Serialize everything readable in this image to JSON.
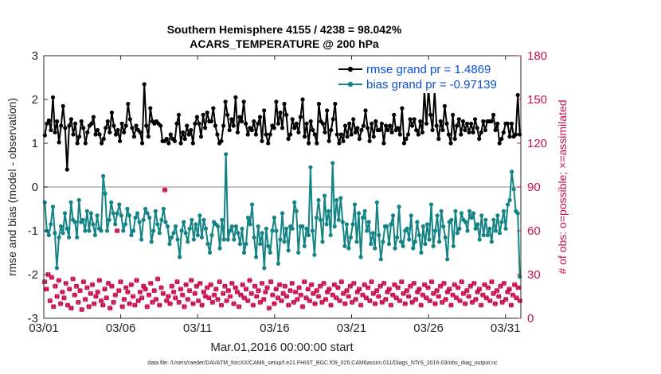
{
  "colors": {
    "rmse": "#000000",
    "bias": "#138384",
    "obs": "#c8104e",
    "zero_line": "#b0b0b0",
    "legend_text": "#0b4fd6"
  },
  "chart_data": {
    "type": "line",
    "title_line1": "Southern Hemisphere 4155 / 4238 = 98.042%",
    "title_line2": "ACARS_TEMPERATURE @ 200 hPa",
    "xlabel": "Mar.01,2016 00:00:00 start",
    "ylabel_left": "rmse and bias (model - observation)",
    "ylabel_right": "# of obs: o=possible; ×=assimilated",
    "footnote": "data file: /Users/raeder/DAI/ATM_forcXX/CAM6_setup/f.e21.FHIST_BGC.f09_025.CAM6assim.011/Diags_NTrS_2016-03/obs_diag_output.nc",
    "xlim": [
      0,
      31
    ],
    "x_ticks": [
      0,
      5,
      10,
      15,
      20,
      25,
      30
    ],
    "x_tick_labels": [
      "03/01",
      "03/06",
      "03/11",
      "03/16",
      "03/21",
      "03/26",
      "03/31"
    ],
    "ylim_left": [
      -3,
      3
    ],
    "y_ticks_left": [
      -3,
      -2,
      -1,
      0,
      1,
      2,
      3
    ],
    "y_tick_labels_left": [
      "-3",
      "-2",
      "-1",
      "0",
      "1",
      "2",
      "3"
    ],
    "ylim_right": [
      0,
      180
    ],
    "y_ticks_right": [
      0,
      30,
      60,
      90,
      120,
      150,
      180
    ],
    "y_tick_labels_right": [
      "0",
      "30",
      "60",
      "90",
      "120",
      "150",
      "180"
    ],
    "legend": [
      "rmse grand pr = 1.4869",
      "bias grand pr = -0.97139"
    ],
    "series": [
      {
        "name": "rmse",
        "axis": "left",
        "marker": "dot",
        "values": [
          1.18,
          1.45,
          1.52,
          1.3,
          2.05,
          1.25,
          1.5,
          1.02,
          1.4,
          1.85,
          1.35,
          0.4,
          1.4,
          1.55,
          1.2,
          1.45,
          1.0,
          1.15,
          1.5,
          1.35,
          1.0,
          1.25,
          1.4,
          1.45,
          1.6,
          1.2,
          1.3,
          1.2,
          1.0,
          1.1,
          1.35,
          1.5,
          1.25,
          1.7,
          1.4,
          1.2,
          1.3,
          1.05,
          1.45,
          1.25,
          1.4,
          1.9,
          1.55,
          1.35,
          1.15,
          1.4,
          1.3,
          1.25,
          1.0,
          2.35,
          1.4,
          1.15,
          1.8,
          1.5,
          1.45,
          1.5,
          1.45,
          1.4,
          1.05,
          1.05,
          1.1,
          1.0,
          1.2,
          1.1,
          1.05,
          1.45,
          1.65,
          1.0,
          1.25,
          1.1,
          1.4,
          1.2,
          1.3,
          1.0,
          1.45,
          1.6,
          1.45,
          1.15,
          1.65,
          1.35,
          1.7,
          1.5,
          1.5,
          1.8,
          1.4,
          1.2,
          1.0,
          1.05,
          1.4,
          1.95,
          1.65,
          1.3,
          1.55,
          1.4,
          2.05,
          1.25,
          1.6,
          1.5,
          1.95,
          1.45,
          1.2,
          1.35,
          1.3,
          1.5,
          1.2,
          1.45,
          1.6,
          1.05,
          1.75,
          1.2,
          1.0,
          1.2,
          1.4,
          1.35,
          1.95,
          1.45,
          1.7,
          1.35,
          1.9,
          1.65,
          1.1,
          1.2,
          1.55,
          1.35,
          1.45,
          1.25,
          1.6,
          2.0,
          1.15,
          1.45,
          1.0,
          1.5,
          1.3,
          1.2,
          1.0,
          1.9,
          1.5,
          1.45,
          1.25,
          1.75,
          1.05,
          1.3,
          1.55,
          1.9,
          1.2,
          1.0,
          1.2,
          1.05,
          1.4,
          1.15,
          1.45,
          1.2,
          1.55,
          1.25,
          1.35,
          1.1,
          1.3,
          1.4,
          1.75,
          1.35,
          1.05,
          1.45,
          1.15,
          1.5,
          1.3,
          1.3,
          1.45,
          1.0,
          1.4,
          1.3,
          1.4,
          1.25,
          1.65,
          1.3,
          1.35,
          1.2,
          1.8,
          1.0,
          1.1,
          1.2,
          1.55,
          1.4,
          1.55,
          1.3,
          1.2,
          1.5,
          1.25,
          2.2,
          1.45,
          2.25,
          1.65,
          1.3,
          2.2,
          1.4,
          1.1,
          1.5,
          1.3,
          1.85,
          1.45,
          1.2,
          1.0,
          1.65,
          1.1,
          1.4,
          1.55,
          1.2,
          1.5,
          1.3,
          1.45,
          1.25,
          1.45,
          1.25,
          1.55,
          1.35,
          1.1,
          1.25,
          1.5,
          1.3,
          1.5,
          1.5,
          1.5,
          1.65,
          1.3,
          1.45,
          1.0,
          1.1,
          1.25,
          1.45,
          1.45,
          1.15,
          1.45,
          1.15,
          1.2,
          2.1,
          1.2
        ]
      },
      {
        "name": "bias",
        "axis": "left",
        "marker": "dot",
        "values": [
          -0.35,
          -1.0,
          -1.1,
          -0.85,
          -0.45,
          -1.05,
          -1.85,
          -1.15,
          -0.9,
          -1.05,
          -0.6,
          -0.95,
          -1.15,
          -0.35,
          -0.75,
          -0.8,
          -1.15,
          -0.3,
          -0.8,
          -0.75,
          -1.0,
          -0.55,
          -1.0,
          -0.6,
          -0.85,
          -1.1,
          -0.65,
          -0.95,
          -1.0,
          0.25,
          -0.15,
          -1.0,
          -0.75,
          -0.35,
          -0.6,
          -0.85,
          -0.6,
          -0.4,
          -0.65,
          -1.0,
          -0.85,
          -0.5,
          -0.65,
          -1.1,
          -1.0,
          -0.7,
          -0.6,
          -0.8,
          -1.2,
          -0.75,
          -0.5,
          -0.6,
          -0.7,
          -1.25,
          -1.0,
          -0.55,
          -0.85,
          -1.05,
          -0.75,
          -0.5,
          -0.8,
          -0.9,
          -1.3,
          -1.15,
          -1.05,
          -0.9,
          -1.2,
          -1.6,
          -1.0,
          -0.8,
          -1.05,
          -1.25,
          -0.95,
          -0.75,
          -1.2,
          -0.85,
          -1.1,
          -0.65,
          -1.15,
          -0.75,
          -0.95,
          -1.3,
          -1.5,
          -1.1,
          -0.8,
          -0.85,
          -0.9,
          -1.4,
          -0.75,
          -1.2,
          0.75,
          -1.2,
          -1.0,
          -0.9,
          -1.2,
          -0.9,
          -1.05,
          -1.3,
          -0.95,
          -1.5,
          -1.3,
          -0.7,
          -0.85,
          -0.4,
          -1.15,
          -1.6,
          -0.9,
          -1.3,
          -1.05,
          -1.85,
          -0.95,
          -1.35,
          -1.5,
          -1.0,
          -0.7,
          -1.0,
          -1.75,
          -1.2,
          -0.6,
          -1.25,
          -0.95,
          -1.45,
          -0.9,
          -0.95,
          -0.35,
          -0.55,
          -1.5,
          -0.9,
          -0.9,
          -1.35,
          -0.95,
          -1.1,
          0.45,
          -1.0,
          -1.55,
          -0.7,
          -0.3,
          -0.75,
          -1.25,
          -0.2,
          -0.85,
          -0.55,
          -1.1,
          0.55,
          -0.9,
          -0.3,
          -0.75,
          -0.25,
          -0.8,
          -1.35,
          -0.85,
          -1.4,
          -1.15,
          -0.85,
          -0.4,
          -1.25,
          -0.6,
          -1.6,
          -0.7,
          -0.55,
          -1.0,
          -0.8,
          -1.3,
          -1.05,
          -1.4,
          -0.35,
          -1.1,
          -1.65,
          -1.25,
          -0.9,
          -0.9,
          -1.3,
          -0.85,
          -0.65,
          -1.4,
          -1.15,
          -0.45,
          -1.25,
          -1.35,
          -1.0,
          -0.95,
          -1.2,
          -0.65,
          -1.4,
          -1.25,
          -0.8,
          -1.1,
          -1.5,
          -0.9,
          -1.3,
          -0.85,
          -1.2,
          -0.4,
          -1.35,
          -1.0,
          -0.65,
          -1.25,
          -0.55,
          -0.9,
          -1.15,
          -1.65,
          -0.8,
          -0.75,
          -1.35,
          -0.55,
          -1.05,
          -0.95,
          -0.6,
          -0.75,
          -0.8,
          -1.0,
          -0.55,
          -0.7,
          -0.6,
          -0.95,
          -0.85,
          -1.2,
          -0.65,
          -1.1,
          -0.75,
          -1.1,
          -0.95,
          -1.25,
          -0.75,
          -1.0,
          -0.65,
          -1.05,
          -0.8,
          -0.55,
          -0.95,
          -0.4,
          -0.3,
          0.35,
          -0.05,
          -0.55,
          -0.6,
          -2.05
        ]
      },
      {
        "name": "obs_possible",
        "axis": "right",
        "marker": "circle",
        "values": [
          25,
          20,
          30,
          12,
          28,
          8,
          22,
          15,
          26,
          10,
          18,
          14,
          24,
          9,
          20,
          7,
          27,
          16,
          22,
          11,
          19,
          6,
          25,
          13,
          21,
          8,
          17,
          23,
          10,
          15,
          18,
          26,
          12,
          9,
          20,
          14,
          24,
          7,
          22,
          11,
          16,
          60,
          19,
          25,
          8,
          13,
          21,
          18,
          10,
          23,
          15,
          9,
          26,
          12,
          18,
          14,
          22,
          20,
          8,
          16,
          24,
          11,
          19,
          13,
          27,
          9,
          21,
          17,
          88,
          12,
          15,
          10,
          22,
          18,
          14,
          25,
          11,
          20,
          16,
          8,
          23,
          13,
          19,
          26,
          10,
          17,
          22,
          12,
          24,
          9,
          18,
          15,
          21,
          14,
          23,
          11,
          16,
          20,
          13,
          25,
          9,
          17,
          22,
          12,
          19,
          15,
          24,
          10,
          21,
          18,
          8,
          16,
          23,
          14,
          20,
          12,
          26,
          17,
          9,
          22,
          15,
          19,
          11,
          24,
          13,
          18,
          21,
          7,
          25,
          16,
          10,
          20,
          14,
          23,
          12,
          17,
          22,
          15,
          9,
          19,
          24,
          11,
          18,
          13,
          21,
          16,
          8,
          25,
          14,
          20,
          12,
          23,
          17,
          10,
          19,
          15,
          22,
          11,
          24,
          13,
          18,
          20,
          9,
          16,
          23,
          14,
          21,
          12,
          25,
          17,
          10,
          19,
          15,
          22,
          11,
          24,
          13,
          18,
          20,
          9,
          16,
          23,
          14,
          21,
          12,
          25,
          17,
          10,
          19,
          15,
          22,
          11,
          24,
          13,
          18,
          20,
          9,
          16,
          23,
          14,
          21,
          12,
          25,
          17,
          10,
          19,
          15,
          22,
          11,
          24,
          13,
          18,
          20,
          9,
          16,
          23,
          14,
          21,
          12,
          25,
          17,
          10,
          19,
          15,
          22,
          11,
          24,
          13,
          18,
          20,
          9,
          16,
          23,
          14,
          21,
          12,
          25,
          17,
          10,
          19,
          15,
          22,
          11,
          24,
          13,
          18,
          20,
          9,
          16,
          23,
          14,
          21,
          12,
          25,
          17,
          10,
          19,
          15,
          22,
          11,
          24,
          13,
          18,
          20,
          9,
          16,
          23,
          14,
          21,
          12
        ]
      }
    ]
  }
}
